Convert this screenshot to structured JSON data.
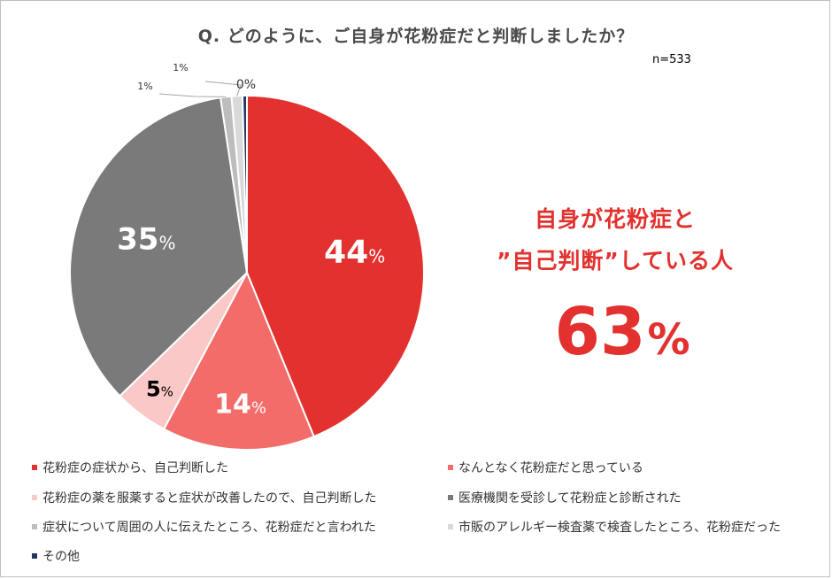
{
  "chart_data": {
    "type": "pie",
    "title": "Q.  どのように、ご自身が花粉症だと判断しましたか？",
    "n_label": "n=533",
    "slices": [
      {
        "label": "花粉症の症状から、自己判断した",
        "value": 44,
        "display": "44",
        "color": "#e2312e",
        "text_color": "#ffffff"
      },
      {
        "label": "なんとなく花粉症だと思っている",
        "value": 14,
        "display": "14",
        "color": "#f26d6a",
        "text_color": "#ffffff"
      },
      {
        "label": "花粉症の薬を服薬すると症状が改善したので、自己判断した",
        "value": 5,
        "display": "5",
        "color": "#f9c8c7",
        "text_color": "#000000"
      },
      {
        "label": "医療機関を受診して花粉症と診断された",
        "value": 35,
        "display": "35",
        "color": "#7a7a7a",
        "text_color": "#ffffff"
      },
      {
        "label": "症状について周囲の人に伝えたところ、花粉症だと言われた",
        "value": 1,
        "display": "1%",
        "color": "#bdbdbd",
        "text_color": "#333333"
      },
      {
        "label": "市販のアレルギー検査薬で検査したところ、花粉症だった",
        "value": 1,
        "display": "1%",
        "color": "#d9d9d9",
        "text_color": "#333333"
      },
      {
        "label": "その他",
        "value": 0.4,
        "display": "0%",
        "color": "#1f3864",
        "text_color": "#333333"
      }
    ],
    "percent_sign": "%"
  },
  "callout": {
    "line1": "自身が花粉症と",
    "line2": "”自己判断”している人",
    "value": "63",
    "unit": "%"
  }
}
